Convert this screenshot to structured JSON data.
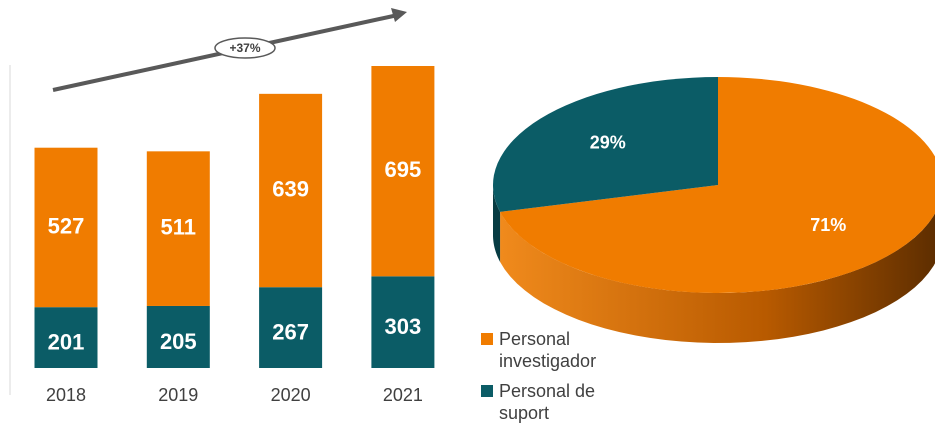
{
  "chart_data": [
    {
      "type": "bar",
      "stacked": true,
      "annotation": "+37%",
      "categories": [
        "2018",
        "2019",
        "2020",
        "2021"
      ],
      "series": [
        {
          "color": "#0b5c66",
          "values": [
            201,
            205,
            267,
            303
          ]
        },
        {
          "color": "#f07c00",
          "values": [
            527,
            511,
            639,
            695
          ]
        }
      ]
    },
    {
      "type": "pie",
      "categories": [
        "Personal investigador",
        "Personal de suport"
      ],
      "values": [
        71,
        29
      ],
      "value_labels": [
        "71%",
        "29%"
      ],
      "colors": [
        "#f07c00",
        "#0b5c66"
      ]
    }
  ]
}
